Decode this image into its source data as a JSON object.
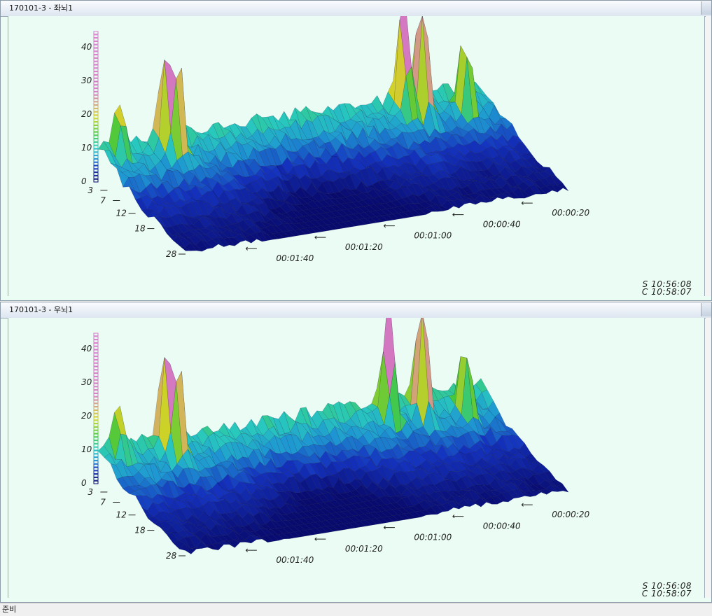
{
  "panels": [
    {
      "title": "170101-3 - 좌뇌1",
      "z_ticks": [
        "0",
        "10",
        "20",
        "30",
        "40"
      ],
      "depth_ticks": [
        "3",
        "7",
        "12",
        "18",
        "28"
      ],
      "time_ticks": [
        "00:00:20",
        "00:00:40",
        "00:01:00",
        "00:01:20",
        "00:01:40"
      ],
      "stamp_start": "S 10:56:08",
      "stamp_current": "C 10:58:07"
    },
    {
      "title": "170101-3 - 우뇌1",
      "z_ticks": [
        "0",
        "10",
        "20",
        "30",
        "40"
      ],
      "depth_ticks": [
        "3",
        "7",
        "12",
        "18",
        "28"
      ],
      "time_ticks": [
        "00:00:20",
        "00:00:40",
        "00:01:00",
        "00:01:20",
        "00:01:40"
      ],
      "stamp_start": "S 10:56:08",
      "stamp_current": "C 10:58:07"
    }
  ],
  "status": {
    "text": "준비"
  },
  "colors": {
    "panel_bg": "#eafcf4",
    "surface_low": "#0a1a8c",
    "surface_mid": "#1fb8c8",
    "surface_high": "#d8d820",
    "surface_peak": "#d070c0"
  }
}
